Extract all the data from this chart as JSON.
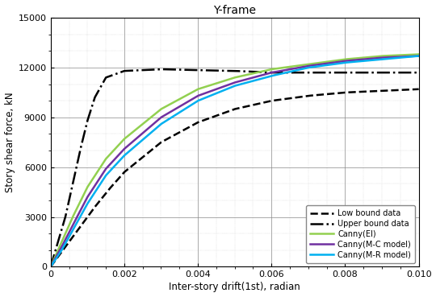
{
  "title": "Y-frame",
  "xlabel": "Inter-story drift(1st), radian",
  "ylabel": "Story shear force, kN",
  "xlim": [
    0,
    0.01
  ],
  "ylim": [
    0,
    15000
  ],
  "yticks": [
    0,
    3000,
    6000,
    9000,
    12000,
    15000
  ],
  "xticks": [
    0,
    0.002,
    0.004,
    0.006,
    0.008,
    0.01
  ],
  "bg_color": "#ffffff",
  "grid_major_color": "#888888",
  "grid_minor_color": "#bbbbbb",
  "series": {
    "low_bound": {
      "label": "Low bound data",
      "color": "#000000",
      "linestyle": "--",
      "linewidth": 1.8,
      "x": [
        0,
        0.0004,
        0.0008,
        0.0012,
        0.0016,
        0.002,
        0.003,
        0.004,
        0.005,
        0.006,
        0.007,
        0.008,
        0.009,
        0.01
      ],
      "y": [
        0,
        1200,
        2400,
        3600,
        4700,
        5700,
        7500,
        8700,
        9500,
        10000,
        10300,
        10500,
        10600,
        10700
      ]
    },
    "upper_bound": {
      "label": "Upper bound data",
      "color": "#000000",
      "linestyle": "-.",
      "linewidth": 1.8,
      "x": [
        0,
        0.0002,
        0.0004,
        0.0006,
        0.0008,
        0.001,
        0.0012,
        0.0015,
        0.002,
        0.003,
        0.004,
        0.005,
        0.006,
        0.007,
        0.008,
        0.009,
        0.01
      ],
      "y": [
        0,
        1500,
        3000,
        5000,
        7000,
        8800,
        10200,
        11400,
        11800,
        11900,
        11850,
        11800,
        11700,
        11700,
        11700,
        11700,
        11700
      ]
    },
    "canny_ei": {
      "label": "Canny(EI)",
      "color": "#92d050",
      "linestyle": "-",
      "linewidth": 1.8,
      "x": [
        0,
        0.0003,
        0.0006,
        0.001,
        0.0015,
        0.002,
        0.003,
        0.004,
        0.005,
        0.006,
        0.007,
        0.008,
        0.009,
        0.01
      ],
      "y": [
        0,
        1500,
        3000,
        4800,
        6500,
        7700,
        9500,
        10700,
        11400,
        11900,
        12200,
        12500,
        12700,
        12800
      ]
    },
    "canny_mc": {
      "label": "Canny(M-C model)",
      "color": "#7030a0",
      "linestyle": "-",
      "linewidth": 1.8,
      "x": [
        0,
        0.0003,
        0.0006,
        0.001,
        0.0015,
        0.002,
        0.003,
        0.004,
        0.005,
        0.006,
        0.007,
        0.008,
        0.009,
        0.01
      ],
      "y": [
        0,
        1200,
        2500,
        4200,
        5900,
        7100,
        9000,
        10300,
        11100,
        11700,
        12100,
        12400,
        12600,
        12700
      ]
    },
    "canny_mr": {
      "label": "Canny(M-R model)",
      "color": "#00b0f0",
      "linestyle": "-",
      "linewidth": 1.8,
      "x": [
        0,
        0.0003,
        0.0006,
        0.001,
        0.0015,
        0.002,
        0.003,
        0.004,
        0.005,
        0.006,
        0.007,
        0.008,
        0.009,
        0.01
      ],
      "y": [
        0,
        1000,
        2200,
        3800,
        5500,
        6700,
        8600,
        10000,
        10900,
        11500,
        12000,
        12300,
        12500,
        12700
      ]
    }
  },
  "title_fontsize": 10,
  "label_fontsize": 8.5,
  "tick_fontsize": 8
}
